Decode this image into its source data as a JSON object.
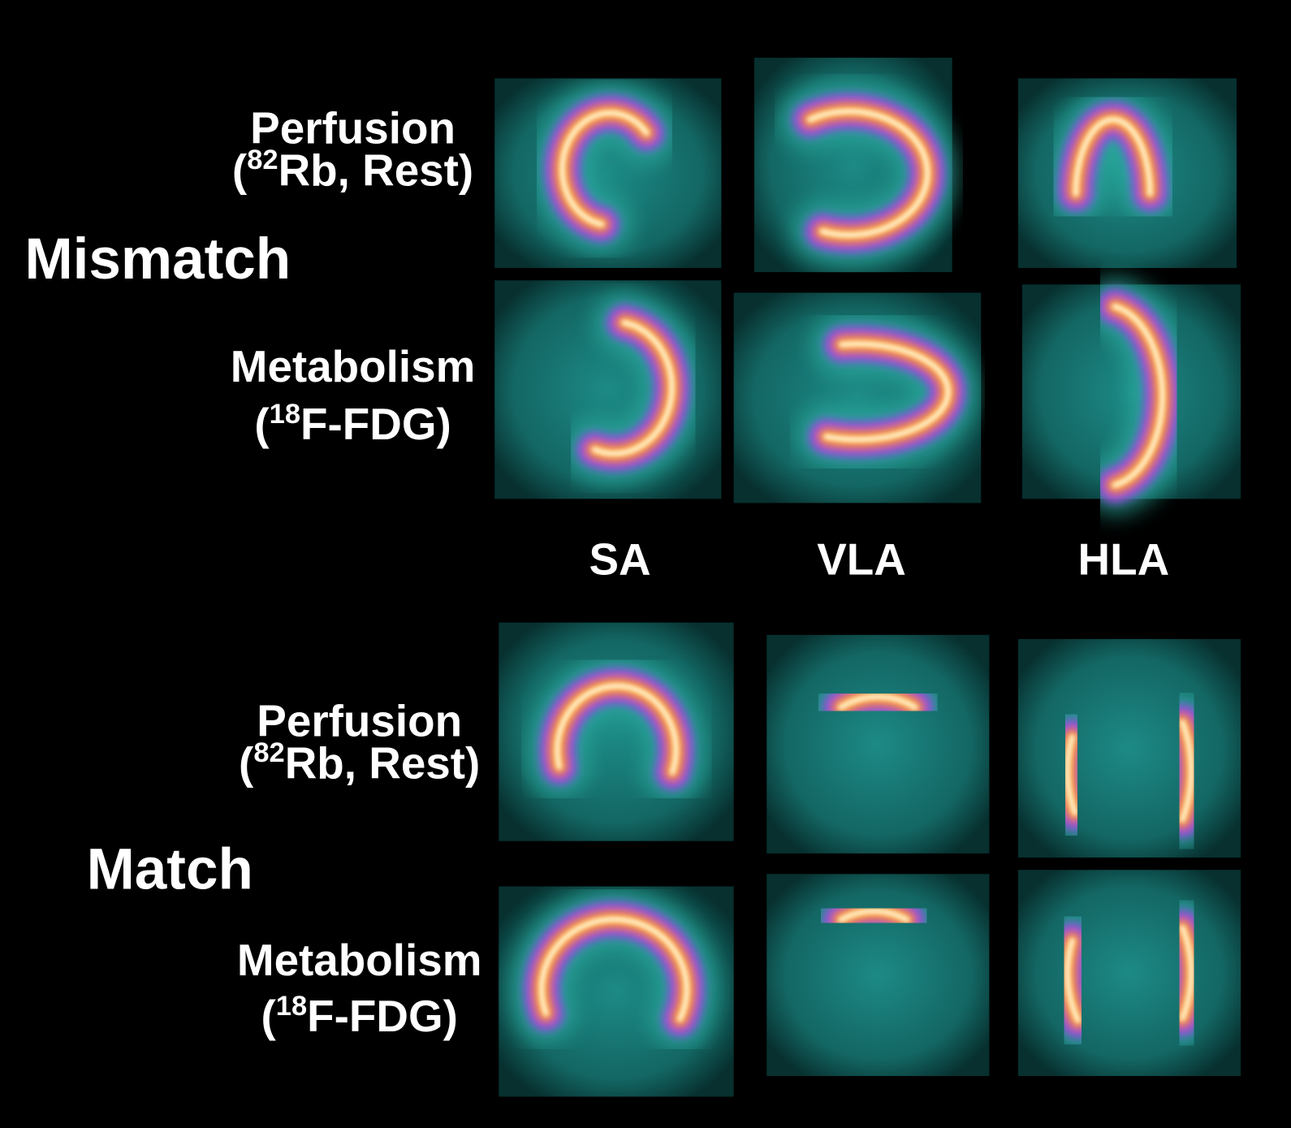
{
  "mismatch": {
    "label": "Mismatch",
    "perfusion": {
      "title": "Perfusion",
      "tracer": {
        "open": "(",
        "isotope": "82",
        "rest": "Rb, Rest)"
      }
    },
    "metabolism": {
      "title": "Metabolism",
      "tracer": {
        "open": "(",
        "isotope": "18",
        "rest": "F-FDG)"
      }
    }
  },
  "views": [
    "SA",
    "VLA",
    "HLA"
  ],
  "match": {
    "label": "Match",
    "perfusion": {
      "title": "Perfusion",
      "tracer": {
        "open": "(",
        "isotope": "82",
        "rest": "Rb, Rest)"
      }
    },
    "metabolism": {
      "title": "Metabolism",
      "tracer": {
        "open": "(",
        "isotope": "18",
        "rest": "F-FDG)"
      }
    }
  }
}
